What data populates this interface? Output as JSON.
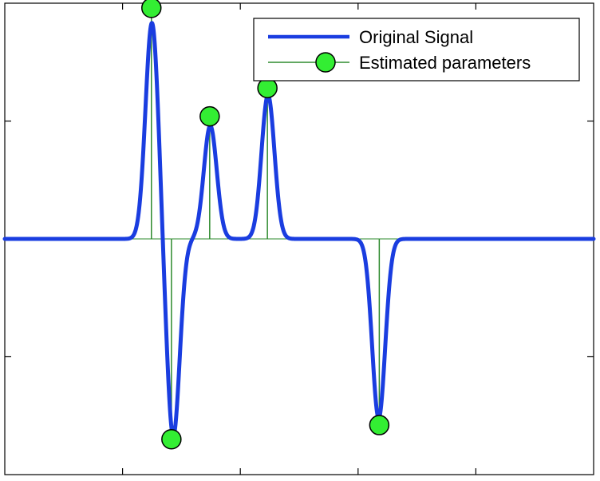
{
  "chart_data": {
    "type": "line",
    "title": "",
    "xlabel": "",
    "ylabel": "",
    "xlim": [
      0,
      100
    ],
    "ylim": [
      -1.0,
      1.0
    ],
    "grid": false,
    "legend_position": "top-right",
    "colors": {
      "signal": "#1a3de0",
      "stem": "#2e8b2e",
      "marker_fill": "#33ee33",
      "marker_edge": "#000000"
    },
    "baseline": 0,
    "peak_width": 1.1,
    "series": [
      {
        "name": "Original Signal",
        "kind": "gaussian-pulses",
        "legend_label": "Original Signal",
        "pulses": [
          {
            "x": 25.0,
            "amp": 0.92
          },
          {
            "x": 28.6,
            "amp": -0.84
          },
          {
            "x": 34.9,
            "amp": 0.48
          },
          {
            "x": 44.7,
            "amp": 0.61
          },
          {
            "x": 63.5,
            "amp": -0.76
          }
        ]
      },
      {
        "name": "Estimated parameters",
        "kind": "stem",
        "legend_label": "Estimated parameters",
        "points": [
          {
            "x": 24.9,
            "y": 0.98
          },
          {
            "x": 28.3,
            "y": -0.85
          },
          {
            "x": 34.8,
            "y": 0.52
          },
          {
            "x": 44.6,
            "y": 0.64
          },
          {
            "x": 63.6,
            "y": -0.79
          }
        ]
      }
    ],
    "x_ticks": [
      20,
      40,
      60,
      80
    ],
    "y_ticks": [
      -0.5,
      0,
      0.5
    ]
  }
}
